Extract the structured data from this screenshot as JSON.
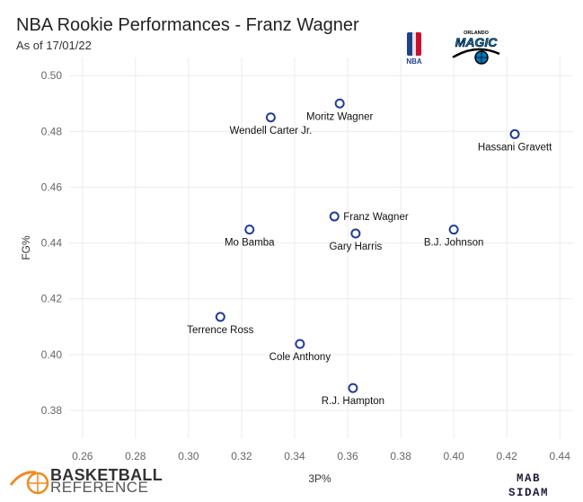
{
  "header": {
    "title": "NBA Rookie Performances - Franz Wagner",
    "subtitle": "As of 17/01/22"
  },
  "logos": {
    "nba_text": "NBA",
    "magic_text": "MAGIC",
    "magic_city": "ORLANDO",
    "bbref_line1": "BASKETBALL",
    "bbref_line2": "REFERENCE",
    "mab_line1": "MAB",
    "mab_line2": "SIDAM"
  },
  "colors": {
    "point_stroke": "#1f3c9c",
    "grid": "#ebebeb",
    "nba_blue": "#1d428a",
    "nba_red": "#c8102e",
    "magic_blue": "#0077c0",
    "bbref_orange": "#f28b20"
  },
  "chart_data": {
    "type": "scatter",
    "xlabel": "3P%",
    "ylabel": "FG%",
    "xlim": [
      0.255,
      0.445
    ],
    "ylim": [
      0.37,
      0.5065
    ],
    "x_ticks": [
      0.26,
      0.28,
      0.3,
      0.32,
      0.34,
      0.36,
      0.38,
      0.4,
      0.42,
      0.44
    ],
    "x_tick_labels": [
      "0.26",
      "0.28",
      "0.30",
      "0.32",
      "0.34",
      "0.36",
      "0.38",
      "0.40",
      "0.42",
      "0.44"
    ],
    "y_ticks": [
      0.38,
      0.4,
      0.42,
      0.44,
      0.46,
      0.48,
      0.5
    ],
    "y_tick_labels": [
      "0.38",
      "0.40",
      "0.42",
      "0.44",
      "0.46",
      "0.48",
      "0.50"
    ],
    "grid": true,
    "points": [
      {
        "name": "Moritz Wagner",
        "x": 0.357,
        "y": 0.49,
        "label_pos": "below"
      },
      {
        "name": "Wendell Carter Jr.",
        "x": 0.331,
        "y": 0.485,
        "label_pos": "below"
      },
      {
        "name": "Hassani Gravett",
        "x": 0.423,
        "y": 0.479,
        "label_pos": "below"
      },
      {
        "name": "Franz Wagner",
        "x": 0.355,
        "y": 0.4495,
        "label_pos": "right"
      },
      {
        "name": "Mo Bamba",
        "x": 0.323,
        "y": 0.4448,
        "label_pos": "below"
      },
      {
        "name": "Gary Harris",
        "x": 0.363,
        "y": 0.4434,
        "label_pos": "below"
      },
      {
        "name": "B.J. Johnson",
        "x": 0.4,
        "y": 0.4448,
        "label_pos": "below"
      },
      {
        "name": "Terrence Ross",
        "x": 0.312,
        "y": 0.4135,
        "label_pos": "below"
      },
      {
        "name": "Cole Anthony",
        "x": 0.342,
        "y": 0.4038,
        "label_pos": "below"
      },
      {
        "name": "R.J. Hampton",
        "x": 0.362,
        "y": 0.388,
        "label_pos": "below"
      }
    ]
  }
}
